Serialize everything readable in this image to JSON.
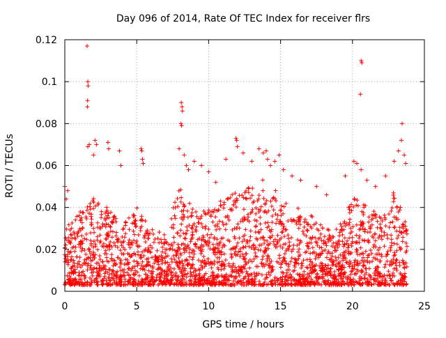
{
  "chart_data": {
    "type": "scatter",
    "title": "Day 096 of 2014, Rate Of TEC Index for receiver flrs",
    "xlabel": "GPS time / hours",
    "ylabel": "ROTI / TECUs",
    "xlim": [
      0,
      25
    ],
    "ylim": [
      0,
      0.12
    ],
    "x_ticks": [
      0,
      5,
      10,
      15,
      20,
      25
    ],
    "x_tick_labels": [
      "0",
      "5",
      "10",
      "15",
      "20",
      "25"
    ],
    "y_ticks": [
      0,
      0.02,
      0.04,
      0.06,
      0.08,
      0.1,
      0.12
    ],
    "y_tick_labels": [
      "0",
      "0.02",
      "0.04",
      "0.06",
      "0.08",
      "0.1",
      "0.12"
    ],
    "grid": true,
    "marker": "+",
    "series_color": "#ff0000",
    "series": [
      {
        "name": "ROTI",
        "points": [
          [
            1.55,
            0.117
          ],
          [
            1.6,
            0.1
          ],
          [
            1.62,
            0.098
          ],
          [
            1.58,
            0.091
          ],
          [
            1.57,
            0.088
          ],
          [
            8.1,
            0.09
          ],
          [
            8.15,
            0.088
          ],
          [
            8.18,
            0.086
          ],
          [
            8.08,
            0.08
          ],
          [
            8.12,
            0.079
          ],
          [
            20.6,
            0.11
          ],
          [
            20.65,
            0.109
          ],
          [
            20.55,
            0.094
          ],
          [
            23.45,
            0.08
          ],
          [
            0.0,
            0.05
          ],
          [
            0.1,
            0.044
          ],
          [
            0.2,
            0.048
          ],
          [
            1.6,
            0.069
          ],
          [
            1.7,
            0.07
          ],
          [
            2.1,
            0.072
          ],
          [
            2.2,
            0.07
          ],
          [
            2.0,
            0.065
          ],
          [
            3.0,
            0.071
          ],
          [
            3.05,
            0.068
          ],
          [
            3.8,
            0.067
          ],
          [
            3.9,
            0.06
          ],
          [
            5.3,
            0.068
          ],
          [
            5.35,
            0.067
          ],
          [
            5.4,
            0.063
          ],
          [
            5.45,
            0.061
          ],
          [
            7.95,
            0.068
          ],
          [
            8.3,
            0.065
          ],
          [
            8.45,
            0.06
          ],
          [
            8.6,
            0.058
          ],
          [
            9.0,
            0.062
          ],
          [
            9.5,
            0.06
          ],
          [
            10.0,
            0.057
          ],
          [
            10.5,
            0.052
          ],
          [
            11.2,
            0.063
          ],
          [
            11.9,
            0.073
          ],
          [
            11.95,
            0.072
          ],
          [
            12.0,
            0.069
          ],
          [
            12.4,
            0.066
          ],
          [
            13.0,
            0.062
          ],
          [
            13.5,
            0.068
          ],
          [
            13.8,
            0.066
          ],
          [
            14.0,
            0.067
          ],
          [
            14.1,
            0.063
          ],
          [
            14.3,
            0.06
          ],
          [
            14.6,
            0.062
          ],
          [
            14.9,
            0.065
          ],
          [
            15.2,
            0.058
          ],
          [
            15.8,
            0.055
          ],
          [
            16.4,
            0.053
          ],
          [
            17.5,
            0.05
          ],
          [
            18.2,
            0.046
          ],
          [
            19.5,
            0.055
          ],
          [
            20.1,
            0.062
          ],
          [
            20.3,
            0.061
          ],
          [
            20.6,
            0.058
          ],
          [
            21.0,
            0.053
          ],
          [
            21.6,
            0.05
          ],
          [
            22.3,
            0.055
          ],
          [
            22.9,
            0.062
          ],
          [
            23.2,
            0.067
          ],
          [
            23.4,
            0.072
          ],
          [
            23.6,
            0.065
          ],
          [
            23.7,
            0.061
          ]
        ],
        "dense_band": {
          "description": "continuous dense cloud of points across the full time range",
          "x_range": [
            0.0,
            23.8
          ],
          "y_floor": 0.003,
          "y_typical_upper": 0.035,
          "envelope": [
            [
              0,
              0.03
            ],
            [
              1,
              0.038
            ],
            [
              2,
              0.045
            ],
            [
              3,
              0.04
            ],
            [
              4,
              0.032
            ],
            [
              5,
              0.04
            ],
            [
              6,
              0.03
            ],
            [
              7,
              0.028
            ],
            [
              8,
              0.05
            ],
            [
              9,
              0.038
            ],
            [
              10,
              0.04
            ],
            [
              11,
              0.045
            ],
            [
              12,
              0.048
            ],
            [
              13,
              0.05
            ],
            [
              14,
              0.055
            ],
            [
              15,
              0.045
            ],
            [
              16,
              0.04
            ],
            [
              17,
              0.038
            ],
            [
              18,
              0.03
            ],
            [
              19,
              0.03
            ],
            [
              20,
              0.045
            ],
            [
              21,
              0.042
            ],
            [
              22,
              0.035
            ],
            [
              23,
              0.05
            ],
            [
              23.8,
              0.03
            ]
          ]
        }
      }
    ]
  }
}
